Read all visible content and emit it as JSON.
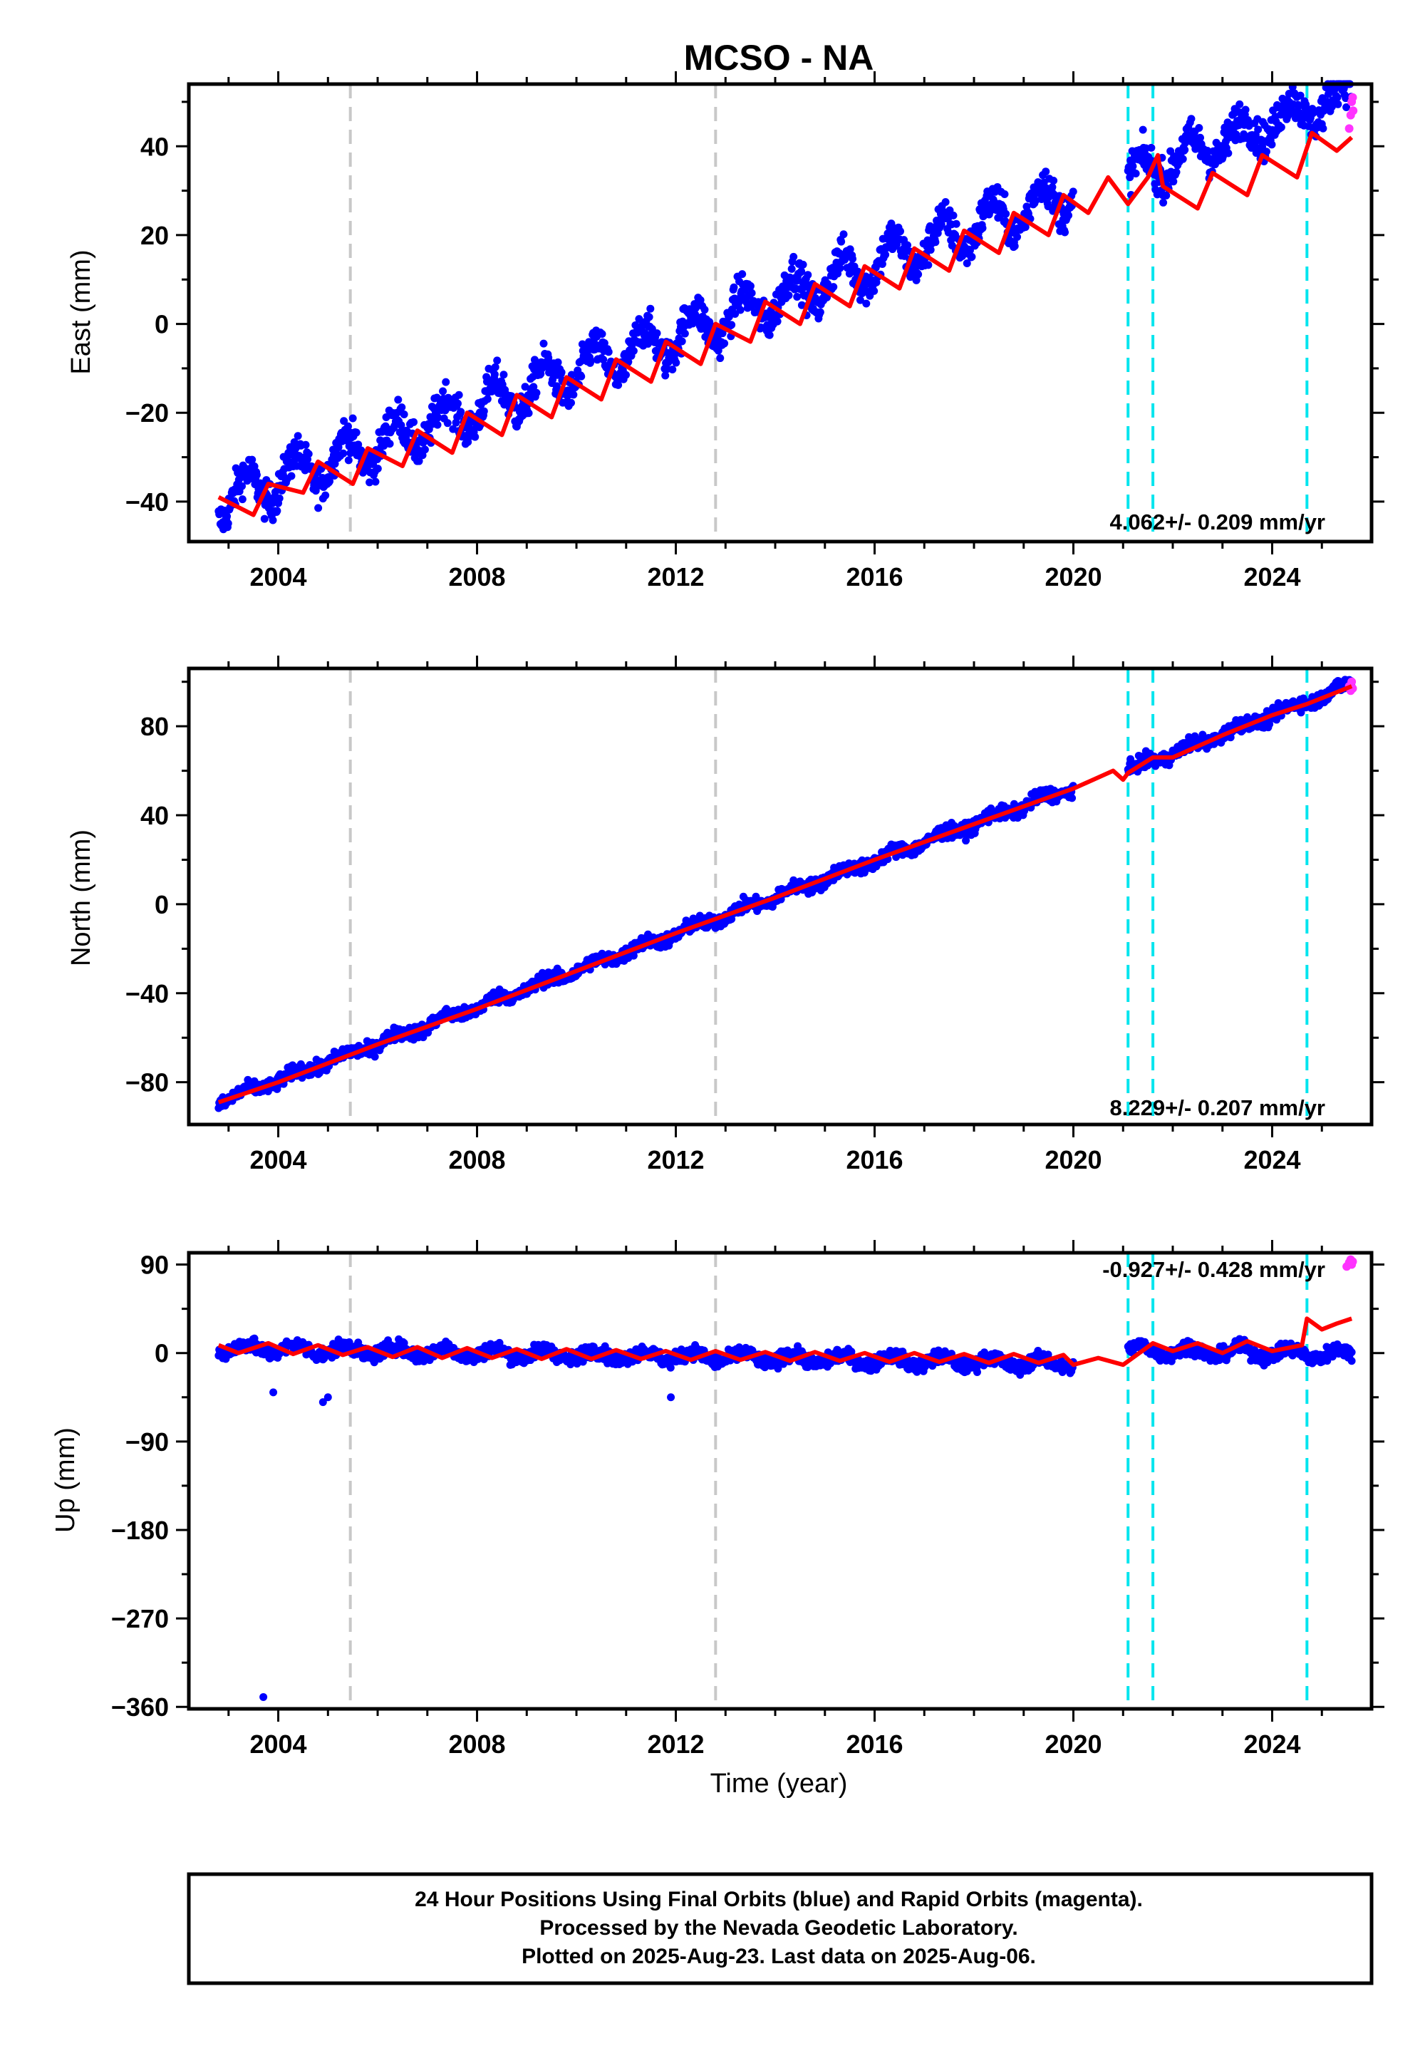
{
  "title": "MCSO - NA",
  "xlabel": "Time (year)",
  "footnote": {
    "line1": "24 Hour Positions Using Final Orbits (blue) and Rapid Orbits (magenta).",
    "line2": "Processed by the Nevada Geodetic Laboratory.",
    "line3": "Plotted on 2025-Aug-23. Last data on 2025-Aug-06."
  },
  "colors": {
    "final_orbits": "#0000ff",
    "rapid_orbits": "#ff33ff",
    "model": "#ff0000",
    "equipment_change": "#c8c8c8",
    "earthquake": "#00e5ee"
  },
  "chart_data": [
    {
      "type": "scatter",
      "ylabel": "East (mm)",
      "rate_text": "4.062+/- 0.209 mm/yr",
      "xlim": [
        2002.2,
        2026.0
      ],
      "ylim": [
        -49,
        54
      ],
      "x_ticks": [
        2004,
        2008,
        2012,
        2016,
        2020,
        2024
      ],
      "y_ticks": [
        -40,
        -20,
        0,
        20,
        40
      ],
      "series": [
        {
          "values": {
            "start_year": 2002.8,
            "end_year": 2020.0,
            "rate": 4.062,
            "y0": -40,
            "annual_amplitude": 4.5,
            "noise": 3.0,
            "resume_year": 2021.1,
            "resume_end": 2025.6,
            "resume_offset": 33,
            "resume_amplitude": 3.5
          }
        },
        {
          "values": [
            [
              2025.55,
              44
            ],
            [
              2025.58,
              47
            ],
            [
              2025.6,
              50
            ],
            [
              2025.62,
              51
            ],
            [
              2025.63,
              48
            ]
          ]
        },
        {
          "values": [
            [
              2002.8,
              -39
            ],
            [
              2003.5,
              -43
            ],
            [
              2003.8,
              -36
            ],
            [
              2004.5,
              -38
            ],
            [
              2004.8,
              -31
            ],
            [
              2005.5,
              -36
            ],
            [
              2005.8,
              -28
            ],
            [
              2006.5,
              -32
            ],
            [
              2006.8,
              -24
            ],
            [
              2007.5,
              -29
            ],
            [
              2007.8,
              -20
            ],
            [
              2008.5,
              -25
            ],
            [
              2008.8,
              -16
            ],
            [
              2009.5,
              -21
            ],
            [
              2009.8,
              -12
            ],
            [
              2010.5,
              -17
            ],
            [
              2010.8,
              -8
            ],
            [
              2011.5,
              -13
            ],
            [
              2011.8,
              -4
            ],
            [
              2012.5,
              -9
            ],
            [
              2012.8,
              0
            ],
            [
              2013.5,
              -4
            ],
            [
              2013.8,
              5
            ],
            [
              2014.5,
              0
            ],
            [
              2014.8,
              9
            ],
            [
              2015.5,
              4
            ],
            [
              2015.8,
              13
            ],
            [
              2016.5,
              8
            ],
            [
              2016.8,
              17
            ],
            [
              2017.5,
              12
            ],
            [
              2017.8,
              21
            ],
            [
              2018.5,
              16
            ],
            [
              2018.8,
              25
            ],
            [
              2019.5,
              20
            ],
            [
              2019.8,
              29
            ],
            [
              2020.3,
              25
            ],
            [
              2020.7,
              33
            ],
            [
              2021.1,
              27
            ],
            [
              2021.5,
              33
            ],
            [
              2021.7,
              38
            ],
            [
              2021.8,
              31
            ],
            [
              2022.5,
              26
            ],
            [
              2022.8,
              34
            ],
            [
              2023.5,
              29
            ],
            [
              2023.8,
              38
            ],
            [
              2024.5,
              33
            ],
            [
              2024.8,
              43
            ],
            [
              2025.3,
              39
            ],
            [
              2025.6,
              42
            ]
          ]
        }
      ],
      "vlines_gray": [
        2005.45,
        2012.8
      ],
      "vlines_cyan": [
        2021.1,
        2021.6,
        2024.7
      ]
    },
    {
      "type": "scatter",
      "ylabel": "North (mm)",
      "rate_text": "8.229+/- 0.207 mm/yr",
      "xlim": [
        2002.2,
        2026.0
      ],
      "ylim": [
        -99,
        106
      ],
      "x_ticks": [
        2004,
        2008,
        2012,
        2016,
        2020,
        2024
      ],
      "y_ticks": [
        -80,
        -40,
        0,
        40,
        80
      ],
      "series": [
        {
          "values": {
            "start_year": 2002.8,
            "end_year": 2020.0,
            "rate": 8.229,
            "y0": -89,
            "annual_amplitude": 1.5,
            "noise": 2.2,
            "resume_year": 2021.1,
            "resume_end": 2025.6,
            "resume_offset": 60,
            "resume_amplitude": 1.5
          }
        },
        {
          "values": [
            [
              2025.55,
              98
            ],
            [
              2025.58,
              96
            ],
            [
              2025.6,
              100
            ],
            [
              2025.62,
              97
            ]
          ]
        },
        {
          "values": [
            [
              2002.8,
              -89
            ],
            [
              2004.0,
              -80
            ],
            [
              2006.0,
              -63
            ],
            [
              2008.0,
              -47
            ],
            [
              2010.0,
              -30
            ],
            [
              2012.0,
              -13
            ],
            [
              2014.0,
              3
            ],
            [
              2016.0,
              20
            ],
            [
              2018.0,
              36
            ],
            [
              2020.0,
              52
            ],
            [
              2020.5,
              57
            ],
            [
              2020.8,
              60
            ],
            [
              2021.0,
              56
            ],
            [
              2021.1,
              59
            ],
            [
              2021.6,
              66
            ],
            [
              2022.0,
              66
            ],
            [
              2023.0,
              76
            ],
            [
              2024.0,
              85
            ],
            [
              2024.7,
              90
            ],
            [
              2025.6,
              98
            ]
          ]
        }
      ],
      "vlines_gray": [
        2005.45,
        2012.8
      ],
      "vlines_cyan": [
        2021.1,
        2021.6,
        2024.7
      ]
    },
    {
      "type": "scatter",
      "ylabel": "Up (mm)",
      "rate_text": "-0.927+/- 0.428 mm/yr",
      "xlim": [
        2002.2,
        2026.0
      ],
      "ylim": [
        -362,
        102
      ],
      "x_ticks": [
        2004,
        2008,
        2012,
        2016,
        2020,
        2024
      ],
      "y_ticks": [
        -360,
        -270,
        -180,
        -90,
        0,
        90
      ],
      "series": [
        {
          "values": {
            "start_year": 2002.8,
            "end_year": 2020.0,
            "rate": -0.927,
            "y0": 5,
            "annual_amplitude": 5,
            "noise": 5,
            "resume_year": 2021.1,
            "resume_end": 2025.6,
            "resume_offset": 3,
            "resume_amplitude": 5,
            "outliers": [
              [
                2003.7,
                -350
              ],
              [
                2003.9,
                -40
              ],
              [
                2004.9,
                -50
              ],
              [
                2005.0,
                -45
              ],
              [
                2011.9,
                -45
              ],
              [
                2025.6,
                -8
              ]
            ]
          }
        },
        {
          "values": [
            [
              2025.5,
              88
            ],
            [
              2025.55,
              92
            ],
            [
              2025.58,
              95
            ],
            [
              2025.6,
              90
            ],
            [
              2025.62,
              93
            ]
          ]
        },
        {
          "values": [
            [
              2002.8,
              8
            ],
            [
              2003.2,
              0
            ],
            [
              2003.8,
              10
            ],
            [
              2004.3,
              -1
            ],
            [
              2004.8,
              8
            ],
            [
              2005.3,
              -2
            ],
            [
              2005.8,
              6
            ],
            [
              2006.3,
              -4
            ],
            [
              2006.8,
              6
            ],
            [
              2007.3,
              -5
            ],
            [
              2007.8,
              5
            ],
            [
              2008.3,
              -5
            ],
            [
              2008.8,
              4
            ],
            [
              2009.3,
              -6
            ],
            [
              2009.8,
              4
            ],
            [
              2010.3,
              -6
            ],
            [
              2010.8,
              3
            ],
            [
              2011.3,
              -6
            ],
            [
              2011.8,
              2
            ],
            [
              2012.3,
              -7
            ],
            [
              2012.8,
              2
            ],
            [
              2013.3,
              -7
            ],
            [
              2013.8,
              1
            ],
            [
              2014.3,
              -8
            ],
            [
              2014.8,
              1
            ],
            [
              2015.3,
              -8
            ],
            [
              2015.8,
              0
            ],
            [
              2016.3,
              -9
            ],
            [
              2016.8,
              0
            ],
            [
              2017.3,
              -9
            ],
            [
              2017.8,
              -1
            ],
            [
              2018.3,
              -10
            ],
            [
              2018.8,
              -1
            ],
            [
              2019.3,
              -10
            ],
            [
              2019.8,
              -2
            ],
            [
              2020.0,
              -12
            ],
            [
              2020.5,
              -5
            ],
            [
              2021.0,
              -12
            ],
            [
              2021.6,
              10
            ],
            [
              2022.0,
              2
            ],
            [
              2022.5,
              10
            ],
            [
              2023.0,
              0
            ],
            [
              2023.5,
              12
            ],
            [
              2024.0,
              2
            ],
            [
              2024.6,
              8
            ],
            [
              2024.7,
              35
            ],
            [
              2025.0,
              24
            ],
            [
              2025.3,
              30
            ],
            [
              2025.6,
              35
            ]
          ]
        }
      ],
      "vlines_gray": [
        2005.45,
        2012.8
      ],
      "vlines_cyan": [
        2021.1,
        2021.6,
        2024.7
      ]
    }
  ]
}
